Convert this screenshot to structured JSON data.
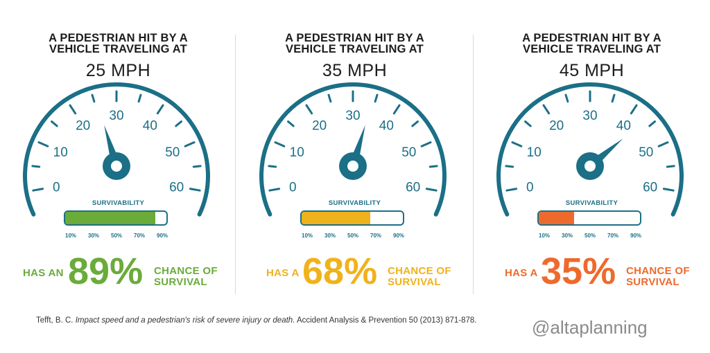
{
  "colors": {
    "teal": "#1b6f86",
    "green": "#6aab3a",
    "yellow": "#f0b21c",
    "orange": "#ee6a2c"
  },
  "panels": [
    {
      "heading_line1": "A PEDESTRIAN HIT BY A",
      "heading_line2": "VEHICLE TRAVELING AT",
      "speed": "25 MPH",
      "dial_labels": [
        "0",
        "10",
        "20",
        "30",
        "40",
        "50",
        "60"
      ],
      "needle_mph": 25,
      "survivability_label": "SURVIVABILITY",
      "bar_fill_percent": 89,
      "bar_ticks": [
        "10%",
        "30%",
        "50%",
        "70%",
        "90%"
      ],
      "result_prefix": "HAS AN",
      "result_percent": "89%",
      "result_suffix_line1": "CHANCE OF",
      "result_suffix_line2": "SURVIVAL",
      "accent": "#6aab3a"
    },
    {
      "heading_line1": "A PEDESTRIAN HIT BY A",
      "heading_line2": "VEHICLE TRAVELING AT",
      "speed": "35 MPH",
      "dial_labels": [
        "0",
        "10",
        "20",
        "30",
        "40",
        "50",
        "60"
      ],
      "needle_mph": 35,
      "survivability_label": "SURVIVABILITY",
      "bar_fill_percent": 68,
      "bar_ticks": [
        "10%",
        "30%",
        "50%",
        "70%",
        "90%"
      ],
      "result_prefix": "HAS A",
      "result_percent": "68%",
      "result_suffix_line1": "CHANCE OF",
      "result_suffix_line2": "SURVIVAL",
      "accent": "#f0b21c"
    },
    {
      "heading_line1": "A PEDESTRIAN HIT BY A",
      "heading_line2": "VEHICLE TRAVELING AT",
      "speed": "45 MPH",
      "dial_labels": [
        "0",
        "10",
        "20",
        "30",
        "40",
        "50",
        "60"
      ],
      "needle_mph": 45,
      "survivability_label": "SURVIVABILITY",
      "bar_fill_percent": 35,
      "bar_ticks": [
        "10%",
        "30%",
        "50%",
        "70%",
        "90%"
      ],
      "result_prefix": "HAS A",
      "result_percent": "35%",
      "result_suffix_line1": "CHANCE OF",
      "result_suffix_line2": "SURVIVAL",
      "accent": "#ee6a2c"
    }
  ],
  "citation": {
    "authors": "Tefft, B. C.",
    "title": "Impact speed and a pedestrian's risk of severe injury or death.",
    "source": "Accident Analysis & Prevention 50 (2013) 871-878."
  },
  "watermark": "@altaplanning"
}
